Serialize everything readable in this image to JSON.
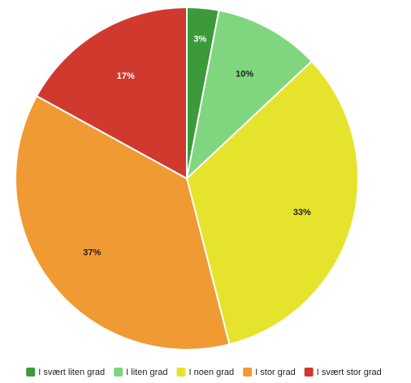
{
  "chart_data": {
    "type": "pie",
    "title": "",
    "legend_position": "bottom",
    "series": [
      {
        "name": "I svært liten grad",
        "value": 3,
        "label": "3%",
        "color": "#3c9a3a",
        "label_color": "#ffffff"
      },
      {
        "name": "I liten grad",
        "value": 10,
        "label": "10%",
        "color": "#7fd67e",
        "label_color": "#222222"
      },
      {
        "name": "I noen grad",
        "value": 33,
        "label": "33%",
        "color": "#e6e32c",
        "label_color": "#222222"
      },
      {
        "name": "I stor grad",
        "value": 37,
        "label": "37%",
        "color": "#f09a33",
        "label_color": "#222222"
      },
      {
        "name": "I svært stor grad",
        "value": 17,
        "label": "17%",
        "color": "#d0392e",
        "label_color": "#ffffff"
      }
    ]
  }
}
